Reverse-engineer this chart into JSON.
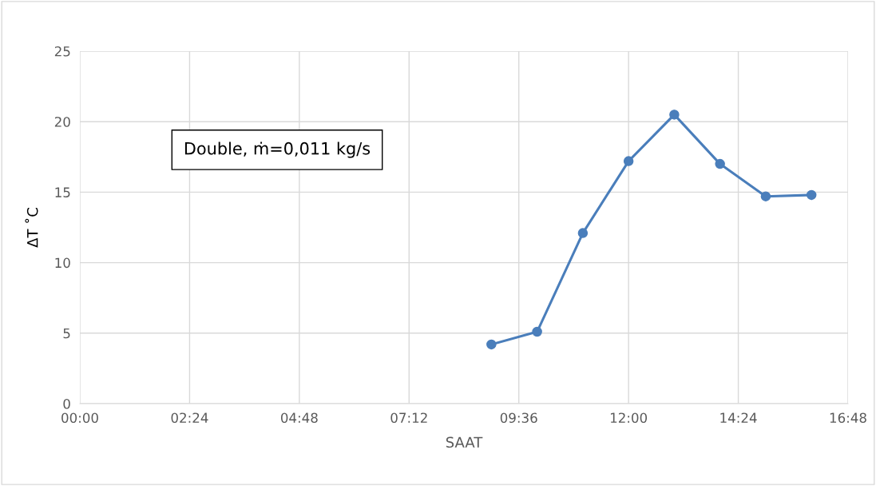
{
  "chart_data": {
    "type": "line",
    "xlabel": "SAAT",
    "ylabel": "ΔT ˚C",
    "x": [
      9,
      10,
      11,
      12,
      13,
      14,
      15,
      16
    ],
    "series": [
      {
        "color": "#4a7ebb",
        "values": [
          4.2,
          5.1,
          12.1,
          17.2,
          20.5,
          17.0,
          14.7,
          14.8
        ]
      }
    ],
    "xlim": [
      0,
      16.8
    ],
    "xticks": [
      {
        "value": 0,
        "label": "00:00"
      },
      {
        "value": 2.4,
        "label": "02:24"
      },
      {
        "value": 4.8,
        "label": "04:48"
      },
      {
        "value": 7.2,
        "label": "07:12"
      },
      {
        "value": 9.6,
        "label": "09:36"
      },
      {
        "value": 12,
        "label": "12:00"
      },
      {
        "value": 14.4,
        "label": "14:24"
      },
      {
        "value": 16.8,
        "label": "16:48"
      }
    ],
    "ylim": [
      0,
      25
    ],
    "yticks": [
      0,
      5,
      10,
      15,
      20,
      25
    ],
    "grid": true,
    "marker": "circle",
    "line_style": "solid",
    "annotations": [
      "Double, ṁ=0,011 kg/s"
    ]
  }
}
